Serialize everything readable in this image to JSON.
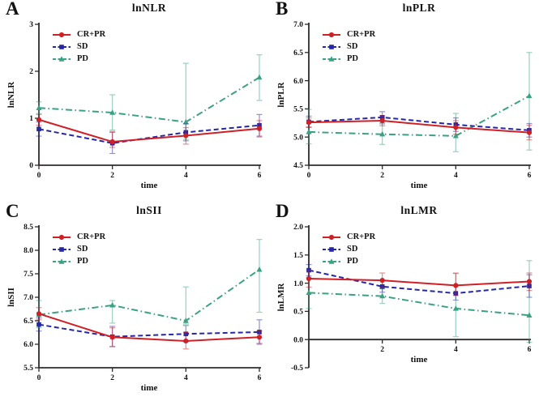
{
  "figure": {
    "xlabel": "time",
    "axis_color": "#2e2b2c",
    "series_style": {
      "CR+PR": {
        "color": "#cf2026",
        "dash": "solid",
        "marker": "circle"
      },
      "SD": {
        "color": "#2527a5",
        "dash": "dashed",
        "marker": "square"
      },
      "PD": {
        "color": "#3aa183",
        "dash": "dashdot",
        "marker": "triangle"
      }
    }
  },
  "chart_data": [
    {
      "panel": "A",
      "type": "line",
      "title": "lnNLR",
      "ylabel": "lnNLR",
      "xlabel": "time",
      "x": [
        0,
        2,
        4,
        6
      ],
      "xtick_labels": [
        "0",
        "2",
        "4",
        "6"
      ],
      "ylim": [
        0,
        3
      ],
      "yticks": [
        0,
        1,
        2,
        3
      ],
      "ytick_labels": [
        "0",
        "1",
        "2",
        "3"
      ],
      "x_axis_at": 0,
      "legend_position": "top-left",
      "grid": false,
      "series": [
        {
          "name": "CR+PR",
          "values": [
            0.97,
            0.5,
            0.63,
            0.78
          ],
          "err_lo": [
            0.85,
            0.38,
            0.45,
            0.6
          ],
          "err_hi": [
            1.08,
            0.72,
            0.8,
            0.95
          ]
        },
        {
          "name": "SD",
          "values": [
            0.77,
            0.47,
            0.7,
            0.85
          ],
          "err_lo": [
            0.62,
            0.25,
            0.52,
            0.62
          ],
          "err_hi": [
            0.92,
            0.7,
            0.88,
            1.08
          ]
        },
        {
          "name": "PD",
          "values": [
            1.22,
            1.12,
            0.92,
            1.87
          ],
          "err_lo": [
            1.1,
            0.75,
            0.55,
            1.38
          ],
          "err_hi": [
            1.35,
            1.5,
            2.17,
            2.35
          ]
        }
      ]
    },
    {
      "panel": "B",
      "type": "line",
      "title": "lnPLR",
      "ylabel": "lnPLR",
      "xlabel": "time",
      "x": [
        0,
        2,
        4,
        6
      ],
      "xtick_labels": [
        "0",
        "2",
        "4",
        "6"
      ],
      "ylim": [
        4.5,
        7.0
      ],
      "yticks": [
        4.5,
        5.0,
        5.5,
        6.0,
        6.5,
        7.0
      ],
      "ytick_labels": [
        "4.5",
        "5.0",
        "5.5",
        "6.0",
        "6.5",
        "7.0"
      ],
      "x_axis_at": 4.5,
      "legend_position": "top-left",
      "grid": false,
      "series": [
        {
          "name": "CR+PR",
          "values": [
            5.26,
            5.29,
            5.17,
            5.08
          ],
          "err_lo": [
            5.18,
            5.2,
            5.05,
            4.95
          ],
          "err_hi": [
            5.34,
            5.38,
            5.29,
            5.21
          ]
        },
        {
          "name": "SD",
          "values": [
            5.27,
            5.35,
            5.22,
            5.12
          ],
          "err_lo": [
            5.17,
            5.25,
            5.1,
            5.0
          ],
          "err_hi": [
            5.37,
            5.45,
            5.34,
            5.24
          ]
        },
        {
          "name": "PD",
          "values": [
            5.09,
            5.05,
            5.02,
            5.73
          ],
          "err_lo": [
            4.88,
            4.87,
            4.74,
            4.77
          ],
          "err_hi": [
            5.49,
            5.23,
            5.42,
            6.5
          ]
        }
      ]
    },
    {
      "panel": "C",
      "type": "line",
      "title": "lnSII",
      "ylabel": "lnSII",
      "xlabel": "time",
      "x": [
        0,
        2,
        4,
        6
      ],
      "xtick_labels": [
        "0",
        "2",
        "4",
        "6"
      ],
      "ylim": [
        5.5,
        8.5
      ],
      "yticks": [
        5.5,
        6.0,
        6.5,
        7.0,
        7.5,
        8.0,
        8.5
      ],
      "ytick_labels": [
        "5.5",
        "6.0",
        "6.5",
        "7.0",
        "7.5",
        "8.0",
        "8.5"
      ],
      "x_axis_at": 5.5,
      "legend_position": "top-left",
      "grid": false,
      "series": [
        {
          "name": "CR+PR",
          "values": [
            6.65,
            6.15,
            6.07,
            6.15
          ],
          "err_lo": [
            6.52,
            5.95,
            5.9,
            6.02
          ],
          "err_hi": [
            6.78,
            6.35,
            6.25,
            6.28
          ]
        },
        {
          "name": "SD",
          "values": [
            6.42,
            6.16,
            6.22,
            6.26
          ],
          "err_lo": [
            6.28,
            5.95,
            6.05,
            6.0
          ],
          "err_hi": [
            6.56,
            6.38,
            6.4,
            6.52
          ]
        },
        {
          "name": "PD",
          "values": [
            6.63,
            6.83,
            6.5,
            7.59
          ],
          "err_lo": [
            6.35,
            6.45,
            6.43,
            6.68
          ],
          "err_hi": [
            6.93,
            6.93,
            7.22,
            8.23
          ]
        }
      ]
    },
    {
      "panel": "D",
      "type": "line",
      "title": "lnLMR",
      "ylabel": "lnLMR",
      "xlabel": "time",
      "x": [
        0,
        2,
        4,
        6
      ],
      "xtick_labels": [
        "",
        "2",
        "4",
        "6"
      ],
      "ylim": [
        -0.5,
        2.0
      ],
      "yticks": [
        -0.5,
        0.0,
        0.5,
        1.0,
        1.5,
        2.0
      ],
      "ytick_labels": [
        "-0.5",
        "0.0",
        "0.5",
        "1.0",
        "1.5",
        "2.0"
      ],
      "x_axis_at": 0.0,
      "legend_position": "top-left",
      "grid": false,
      "series": [
        {
          "name": "CR+PR",
          "values": [
            1.08,
            1.05,
            0.96,
            1.03
          ],
          "err_lo": [
            0.93,
            0.92,
            0.78,
            0.87
          ],
          "err_hi": [
            1.23,
            1.18,
            1.18,
            1.18
          ]
        },
        {
          "name": "SD",
          "values": [
            1.23,
            0.94,
            0.82,
            0.95
          ],
          "err_lo": [
            1.13,
            0.84,
            0.7,
            0.75
          ],
          "err_hi": [
            1.33,
            1.05,
            0.95,
            1.15
          ]
        },
        {
          "name": "PD",
          "values": [
            0.83,
            0.77,
            0.55,
            0.43
          ],
          "err_lo": [
            0.55,
            0.64,
            0.05,
            -0.05
          ],
          "err_hi": [
            1.1,
            0.9,
            1.17,
            1.4
          ]
        }
      ]
    }
  ]
}
